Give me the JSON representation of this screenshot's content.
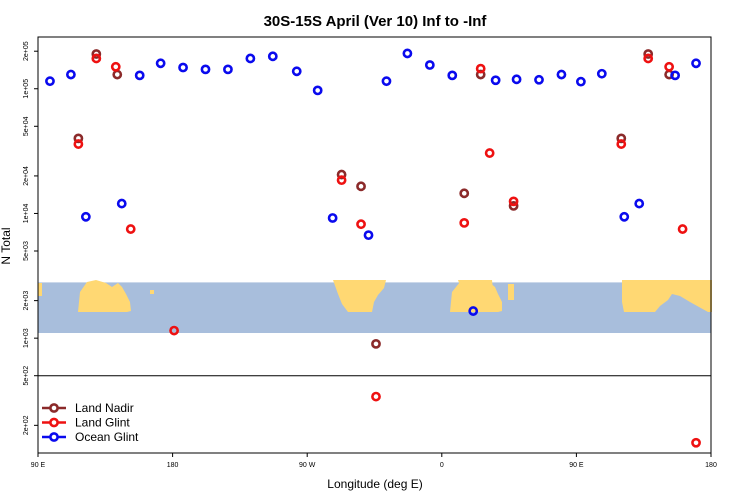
{
  "chart_data": {
    "type": "scatter",
    "title": "30S-15S April (Ver 10)   Inf to -Inf",
    "xlabel": "Longitude (deg E)",
    "ylabel": "N Total",
    "y_scale": "log",
    "xlim": [
      90,
      540
    ],
    "ylim": [
      120,
      260000
    ],
    "x_ticks": [
      {
        "value": 90,
        "label": "90 E"
      },
      {
        "value": 180,
        "label": "180"
      },
      {
        "value": 270,
        "label": "90 W"
      },
      {
        "value": 360,
        "label": "0"
      },
      {
        "value": 450,
        "label": "90 E"
      },
      {
        "value": 540,
        "label": "180"
      }
    ],
    "y_ticks": [
      {
        "value": 200,
        "label": "2e+02"
      },
      {
        "value": 500,
        "label": "5e+02"
      },
      {
        "value": 1000,
        "label": "1e+03"
      },
      {
        "value": 2000,
        "label": "2e+03"
      },
      {
        "value": 5000,
        "label": "5e+03"
      },
      {
        "value": 10000,
        "label": "1e+04"
      },
      {
        "value": 20000,
        "label": "2e+04"
      },
      {
        "value": 50000,
        "label": "5e+04"
      },
      {
        "value": 100000,
        "label": "1e+05"
      },
      {
        "value": 200000,
        "label": "2e+05"
      }
    ],
    "reference_line_y": 500,
    "map_band": {
      "y_range": [
        1100,
        2800
      ],
      "ocean_color": "#a8bedc",
      "land_color": "#ffd873"
    },
    "legend_position": "bottom-left",
    "series": [
      {
        "name": "Land Nadir",
        "color": "#8b2a2a",
        "points": [
          [
            117,
            40000
          ],
          [
            129,
            190000
          ],
          [
            143,
            130000
          ],
          [
            293,
            20500
          ],
          [
            306,
            16500
          ],
          [
            316,
            900
          ],
          [
            375,
            14500
          ],
          [
            386,
            130000
          ],
          [
            408,
            11500
          ],
          [
            480,
            40000
          ],
          [
            498,
            190000
          ],
          [
            512,
            130000
          ]
        ]
      },
      {
        "name": "Land Glint",
        "color": "#ee1111",
        "points": [
          [
            117,
            36000
          ],
          [
            129,
            175000
          ],
          [
            142,
            150000
          ],
          [
            152,
            7500
          ],
          [
            181,
            1150
          ],
          [
            293,
            18500
          ],
          [
            306,
            8200
          ],
          [
            316,
            340
          ],
          [
            375,
            8400
          ],
          [
            386,
            145000
          ],
          [
            392,
            30500
          ],
          [
            408,
            12500
          ],
          [
            480,
            36000
          ],
          [
            498,
            175000
          ],
          [
            512,
            150000
          ],
          [
            521,
            7500
          ],
          [
            530,
            145
          ]
        ]
      },
      {
        "name": "Ocean Glint",
        "color": "#0a0aee",
        "points": [
          [
            98,
            115000
          ],
          [
            112,
            130000
          ],
          [
            122,
            9400
          ],
          [
            146,
            12000
          ],
          [
            158,
            128000
          ],
          [
            172,
            160000
          ],
          [
            187,
            148000
          ],
          [
            202,
            143000
          ],
          [
            217,
            143000
          ],
          [
            232,
            175000
          ],
          [
            247,
            182000
          ],
          [
            263,
            138000
          ],
          [
            277,
            97000
          ],
          [
            287,
            9200
          ],
          [
            311,
            6700
          ],
          [
            323,
            115000
          ],
          [
            337,
            192000
          ],
          [
            352,
            155000
          ],
          [
            367,
            128000
          ],
          [
            381,
            1650
          ],
          [
            396,
            117000
          ],
          [
            410,
            119000
          ],
          [
            425,
            118000
          ],
          [
            440,
            130000
          ],
          [
            453,
            114000
          ],
          [
            467,
            132000
          ],
          [
            482,
            9400
          ],
          [
            492,
            12000
          ],
          [
            516,
            128000
          ],
          [
            530,
            160000
          ]
        ]
      }
    ]
  }
}
